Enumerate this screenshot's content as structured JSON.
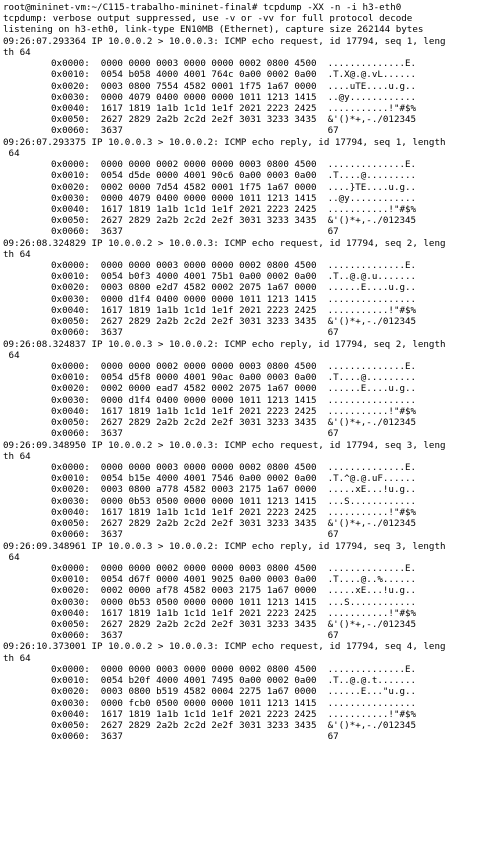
{
  "terminal": {
    "lines": [
      {
        "t": "ln",
        "s": "root@mininet-vm:~/C115-trabalho-mininet-final# tcpdump -XX -n -i h3-eth0"
      },
      {
        "t": "ln",
        "s": "tcpdump: verbose output suppressed, use -v or -vv for full protocol decode"
      },
      {
        "t": "ln",
        "s": "listening on h3-eth0, link-type EN10MB (Ethernet), capture size 262144 bytes"
      },
      {
        "t": "ln",
        "s": "09:26:07.293364 IP 10.0.0.2 > 10.0.0.3: ICMP echo request, id 17794, seq 1, leng"
      },
      {
        "t": "ln",
        "s": "th 64"
      },
      {
        "t": "hx",
        "s": "0x0000:  0000 0000 0003 0000 0000 0002 0800 4500  ..............E."
      },
      {
        "t": "hx",
        "s": "0x0010:  0054 b058 4000 4001 764c 0a00 0002 0a00  .T.X@.@.vL......"
      },
      {
        "t": "hx",
        "s": "0x0020:  0003 0800 7554 4582 0001 1f75 1a67 0000  ....uTE....u.g.."
      },
      {
        "t": "hx",
        "s": "0x0030:  0000 4079 0400 0000 0000 1011 1213 1415  ..@y............"
      },
      {
        "t": "hx",
        "s": "0x0040:  1617 1819 1a1b 1c1d 1e1f 2021 2223 2425  ...........!\"#$%"
      },
      {
        "t": "hx",
        "s": "0x0050:  2627 2829 2a2b 2c2d 2e2f 3031 3233 3435  &'()*+,-./012345"
      },
      {
        "t": "hx",
        "s": "0x0060:  3637                                     67"
      },
      {
        "t": "ln",
        "s": "09:26:07.293375 IP 10.0.0.3 > 10.0.0.2: ICMP echo reply, id 17794, seq 1, length"
      },
      {
        "t": "ln",
        "s": " 64"
      },
      {
        "t": "hx",
        "s": "0x0000:  0000 0000 0002 0000 0000 0003 0800 4500  ..............E."
      },
      {
        "t": "hx",
        "s": "0x0010:  0054 d5de 0000 4001 90c6 0a00 0003 0a00  .T....@........."
      },
      {
        "t": "hx",
        "s": "0x0020:  0002 0000 7d54 4582 0001 1f75 1a67 0000  ....}TE....u.g.."
      },
      {
        "t": "hx",
        "s": "0x0030:  0000 4079 0400 0000 0000 1011 1213 1415  ..@y............"
      },
      {
        "t": "hx",
        "s": "0x0040:  1617 1819 1a1b 1c1d 1e1f 2021 2223 2425  ...........!\"#$%"
      },
      {
        "t": "hx",
        "s": "0x0050:  2627 2829 2a2b 2c2d 2e2f 3031 3233 3435  &'()*+,-./012345"
      },
      {
        "t": "hx",
        "s": "0x0060:  3637                                     67"
      },
      {
        "t": "ln",
        "s": "09:26:08.324829 IP 10.0.0.2 > 10.0.0.3: ICMP echo request, id 17794, seq 2, leng"
      },
      {
        "t": "ln",
        "s": "th 64"
      },
      {
        "t": "hx",
        "s": "0x0000:  0000 0000 0003 0000 0000 0002 0800 4500  ..............E."
      },
      {
        "t": "hx",
        "s": "0x0010:  0054 b0f3 4000 4001 75b1 0a00 0002 0a00  .T..@.@.u......."
      },
      {
        "t": "hx",
        "s": "0x0020:  0003 0800 e2d7 4582 0002 2075 1a67 0000  ......E....u.g.."
      },
      {
        "t": "hx",
        "s": "0x0030:  0000 d1f4 0400 0000 0000 1011 1213 1415  ................"
      },
      {
        "t": "hx",
        "s": "0x0040:  1617 1819 1a1b 1c1d 1e1f 2021 2223 2425  ...........!\"#$%"
      },
      {
        "t": "hx",
        "s": "0x0050:  2627 2829 2a2b 2c2d 2e2f 3031 3233 3435  &'()*+,-./012345"
      },
      {
        "t": "hx",
        "s": "0x0060:  3637                                     67"
      },
      {
        "t": "ln",
        "s": "09:26:08.324837 IP 10.0.0.3 > 10.0.0.2: ICMP echo reply, id 17794, seq 2, length"
      },
      {
        "t": "ln",
        "s": " 64"
      },
      {
        "t": "hx",
        "s": "0x0000:  0000 0000 0002 0000 0000 0003 0800 4500  ..............E."
      },
      {
        "t": "hx",
        "s": "0x0010:  0054 d5f8 0000 4001 90ac 0a00 0003 0a00  .T....@........."
      },
      {
        "t": "hx",
        "s": "0x0020:  0002 0000 ead7 4582 0002 2075 1a67 0000  ......E....u.g.."
      },
      {
        "t": "hx",
        "s": "0x0030:  0000 d1f4 0400 0000 0000 1011 1213 1415  ................"
      },
      {
        "t": "hx",
        "s": "0x0040:  1617 1819 1a1b 1c1d 1e1f 2021 2223 2425  ...........!\"#$%"
      },
      {
        "t": "hx",
        "s": "0x0050:  2627 2829 2a2b 2c2d 2e2f 3031 3233 3435  &'()*+,-./012345"
      },
      {
        "t": "hx",
        "s": "0x0060:  3637                                     67"
      },
      {
        "t": "ln",
        "s": "09:26:09.348950 IP 10.0.0.2 > 10.0.0.3: ICMP echo request, id 17794, seq 3, leng"
      },
      {
        "t": "ln",
        "s": "th 64"
      },
      {
        "t": "hx",
        "s": "0x0000:  0000 0000 0003 0000 0000 0002 0800 4500  ..............E."
      },
      {
        "t": "hx",
        "s": "0x0010:  0054 b15e 4000 4001 7546 0a00 0002 0a00  .T.^@.@.uF......"
      },
      {
        "t": "hx",
        "s": "0x0020:  0003 0800 a778 4582 0003 2175 1a67 0000  .....xE...!u.g.."
      },
      {
        "t": "hx",
        "s": "0x0030:  0000 0b53 0500 0000 0000 1011 1213 1415  ...S............"
      },
      {
        "t": "hx",
        "s": "0x0040:  1617 1819 1a1b 1c1d 1e1f 2021 2223 2425  ...........!\"#$%"
      },
      {
        "t": "hx",
        "s": "0x0050:  2627 2829 2a2b 2c2d 2e2f 3031 3233 3435  &'()*+,-./012345"
      },
      {
        "t": "hx",
        "s": "0x0060:  3637                                     67"
      },
      {
        "t": "ln",
        "s": "09:26:09.348961 IP 10.0.0.3 > 10.0.0.2: ICMP echo reply, id 17794, seq 3, length"
      },
      {
        "t": "ln",
        "s": " 64"
      },
      {
        "t": "hx",
        "s": "0x0000:  0000 0000 0002 0000 0000 0003 0800 4500  ..............E."
      },
      {
        "t": "hx",
        "s": "0x0010:  0054 d67f 0000 4001 9025 0a00 0003 0a00  .T....@..%......"
      },
      {
        "t": "hx",
        "s": "0x0020:  0002 0000 af78 4582 0003 2175 1a67 0000  .....xE...!u.g.."
      },
      {
        "t": "hx",
        "s": "0x0030:  0000 0b53 0500 0000 0000 1011 1213 1415  ...S............"
      },
      {
        "t": "hx",
        "s": "0x0040:  1617 1819 1a1b 1c1d 1e1f 2021 2223 2425  ...........!\"#$%"
      },
      {
        "t": "hx",
        "s": "0x0050:  2627 2829 2a2b 2c2d 2e2f 3031 3233 3435  &'()*+,-./012345"
      },
      {
        "t": "hx",
        "s": "0x0060:  3637                                     67"
      },
      {
        "t": "ln",
        "s": "09:26:10.373001 IP 10.0.0.2 > 10.0.0.3: ICMP echo request, id 17794, seq 4, leng"
      },
      {
        "t": "ln",
        "s": "th 64"
      },
      {
        "t": "hx",
        "s": "0x0000:  0000 0000 0003 0000 0000 0002 0800 4500  ..............E."
      },
      {
        "t": "hx",
        "s": "0x0010:  0054 b20f 4000 4001 7495 0a00 0002 0a00  .T..@.@.t......."
      },
      {
        "t": "hx",
        "s": "0x0020:  0003 0800 b519 4582 0004 2275 1a67 0000  ......E...\"u.g.."
      },
      {
        "t": "hx",
        "s": "0x0030:  0000 fcb0 0500 0000 0000 1011 1213 1415  ................"
      },
      {
        "t": "hx",
        "s": "0x0040:  1617 1819 1a1b 1c1d 1e1f 2021 2223 2425  ...........!\"#$%"
      },
      {
        "t": "hx",
        "s": "0x0050:  2627 2829 2a2b 2c2d 2e2f 3031 3233 3435  &'()*+,-./012345"
      },
      {
        "t": "hx",
        "s": "0x0060:  3637                                     67"
      }
    ]
  }
}
